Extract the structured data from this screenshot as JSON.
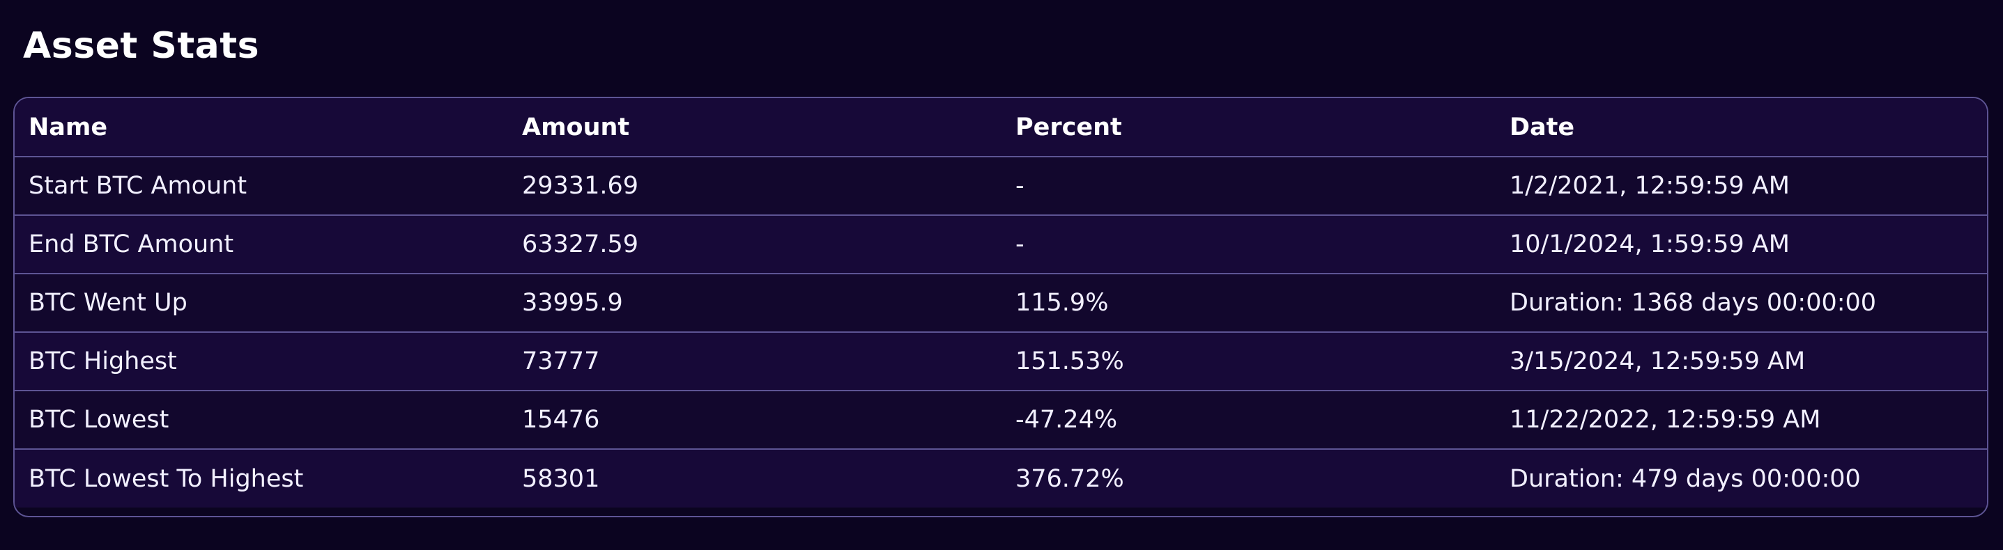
{
  "page": {
    "title": "Asset Stats"
  },
  "table": {
    "headers": [
      "Name",
      "Amount",
      "Percent",
      "Date"
    ],
    "rows": [
      {
        "name": "Start BTC Amount",
        "amount": "29331.69",
        "percent": "-",
        "date": "1/2/2021, 12:59:59 AM"
      },
      {
        "name": "End BTC Amount",
        "amount": "63327.59",
        "percent": "-",
        "date": "10/1/2024, 1:59:59 AM"
      },
      {
        "name": "BTC Went Up",
        "amount": "33995.9",
        "percent": "115.9%",
        "date": "Duration: 1368 days 00:00:00"
      },
      {
        "name": "BTC Highest",
        "amount": "73777",
        "percent": "151.53%",
        "date": "3/15/2024, 12:59:59 AM"
      },
      {
        "name": "BTC Lowest",
        "amount": "15476",
        "percent": "-47.24%",
        "date": "11/22/2022, 12:59:59 AM"
      },
      {
        "name": "BTC Lowest To Highest",
        "amount": "58301",
        "percent": "376.72%",
        "date": "Duration: 479 days 00:00:00"
      }
    ]
  },
  "colors": {
    "background": "#0b0420",
    "header_row": "#170938",
    "row_odd": "#12072d",
    "row_even": "#170938",
    "border": "#5d5494",
    "text": "#ffffff"
  }
}
